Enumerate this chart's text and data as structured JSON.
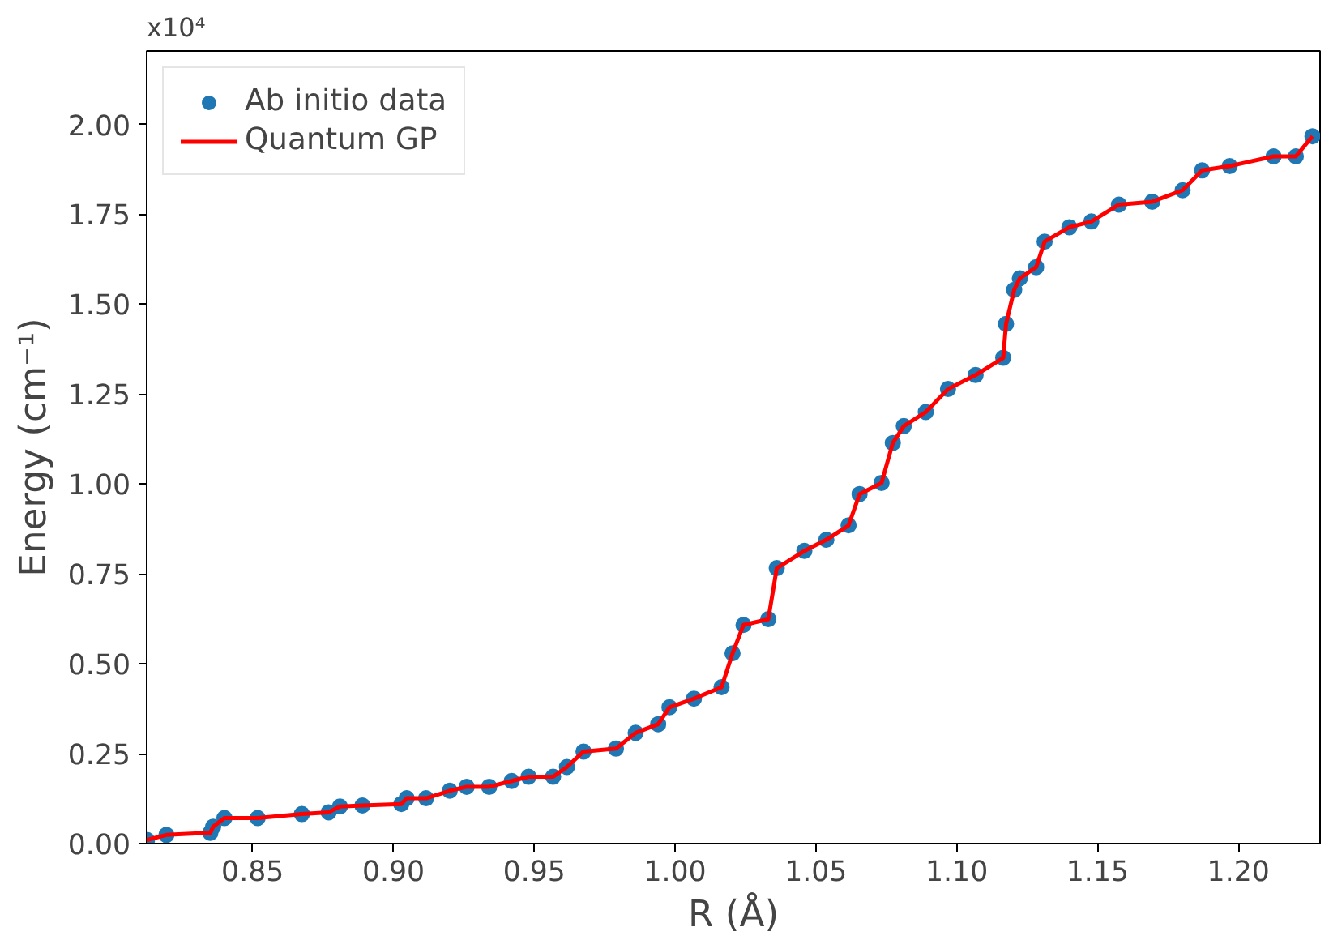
{
  "chart_data": {
    "type": "scatter",
    "xlabel": "R (Å)",
    "ylabel": "Energy (cm⁻¹)",
    "annotations": [
      "x10⁴"
    ],
    "x": [
      0.8125,
      0.8194,
      0.835,
      0.836,
      0.84,
      0.8518,
      0.8675,
      0.877,
      0.881,
      0.889,
      0.9028,
      0.9047,
      0.9116,
      0.92,
      0.926,
      0.934,
      0.942,
      0.948,
      0.9567,
      0.9616,
      0.9675,
      0.979,
      0.986,
      0.994,
      0.998,
      1.0067,
      1.0165,
      1.0204,
      1.0243,
      1.0331,
      1.0361,
      1.0459,
      1.0537,
      1.0616,
      1.0655,
      1.0733,
      1.0773,
      1.0812,
      1.089,
      1.0969,
      1.1067,
      1.1165,
      1.1175,
      1.1204,
      1.1224,
      1.1282,
      1.1312,
      1.14,
      1.1478,
      1.1576,
      1.1694,
      1.1802,
      1.1871,
      1.1969,
      1.2125,
      1.2204,
      1.2263
    ],
    "series": [
      {
        "name": "Ab initio data",
        "color": "#1f77b4",
        "marker": "circle",
        "values": [
          0.01,
          0.024,
          0.03,
          0.047,
          0.071,
          0.071,
          0.082,
          0.087,
          0.103,
          0.106,
          0.11,
          0.126,
          0.126,
          0.147,
          0.158,
          0.158,
          0.174,
          0.186,
          0.186,
          0.213,
          0.256,
          0.264,
          0.308,
          0.332,
          0.379,
          0.403,
          0.435,
          0.529,
          0.608,
          0.624,
          0.766,
          0.814,
          0.845,
          0.885,
          0.972,
          1.003,
          1.114,
          1.161,
          1.2,
          1.264,
          1.303,
          1.351,
          1.445,
          1.54,
          1.572,
          1.603,
          1.674,
          1.714,
          1.73,
          1.777,
          1.785,
          1.817,
          1.872,
          1.884,
          1.911,
          1.911,
          1.967
        ]
      },
      {
        "name": "Quantum GP",
        "type": "line",
        "color": "#ff0000",
        "line_style": "solid",
        "values": [
          0.01,
          0.024,
          0.03,
          0.047,
          0.071,
          0.071,
          0.082,
          0.087,
          0.103,
          0.106,
          0.11,
          0.126,
          0.126,
          0.147,
          0.158,
          0.158,
          0.174,
          0.186,
          0.186,
          0.213,
          0.256,
          0.264,
          0.308,
          0.332,
          0.379,
          0.403,
          0.435,
          0.529,
          0.608,
          0.624,
          0.766,
          0.814,
          0.845,
          0.885,
          0.972,
          1.003,
          1.114,
          1.161,
          1.2,
          1.264,
          1.303,
          1.351,
          1.445,
          1.54,
          1.572,
          1.603,
          1.674,
          1.714,
          1.73,
          1.777,
          1.785,
          1.817,
          1.872,
          1.884,
          1.911,
          1.911,
          1.967
        ]
      }
    ],
    "xlim": [
      0.8124,
      1.229
    ],
    "ylim": [
      0,
      2.204
    ],
    "xticks": [
      {
        "value": 0.85,
        "label": "0.85"
      },
      {
        "value": 0.9,
        "label": "0.90"
      },
      {
        "value": 0.95,
        "label": "0.95"
      },
      {
        "value": 1.0,
        "label": "1.00"
      },
      {
        "value": 1.05,
        "label": "1.05"
      },
      {
        "value": 1.1,
        "label": "1.10"
      },
      {
        "value": 1.15,
        "label": "1.15"
      },
      {
        "value": 1.2,
        "label": "1.20"
      }
    ],
    "yticks": [
      {
        "value": 0,
        "label": "0.00"
      },
      {
        "value": 0.25,
        "label": "0.25"
      },
      {
        "value": 0.5,
        "label": "0.50"
      },
      {
        "value": 0.75,
        "label": "0.75"
      },
      {
        "value": 1.0,
        "label": "1.00"
      },
      {
        "value": 1.25,
        "label": "1.25"
      },
      {
        "value": 1.5,
        "label": "1.50"
      },
      {
        "value": 1.75,
        "label": "1.75"
      },
      {
        "value": 2.0,
        "label": "2.00"
      }
    ],
    "grid": false,
    "legend": "top left"
  }
}
